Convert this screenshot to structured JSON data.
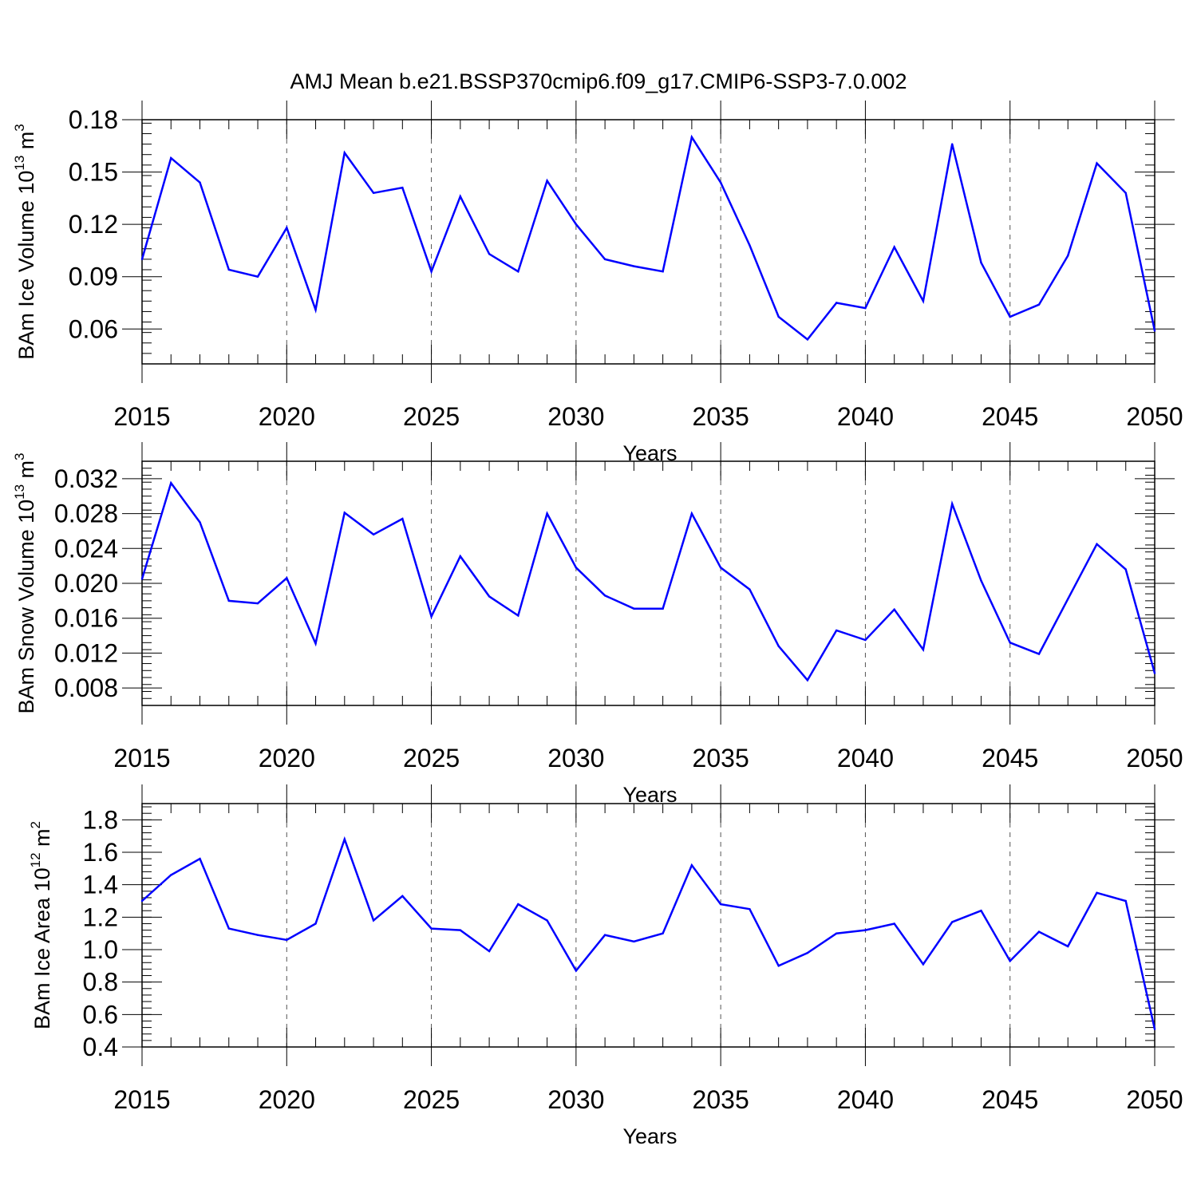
{
  "title": "AMJ Mean b.e21.BSSP370cmip6.f09_g17.CMIP6-SSP3-7.0.002",
  "line_color": "#0000ff",
  "chart_data": [
    {
      "type": "line",
      "ylabel_main": "BAm Ice Volume 10",
      "ylabel_exp": "13",
      "ylabel_unit": " m",
      "ylabel_unit_exp": "3",
      "xlabel": "Years",
      "xlim": [
        2015,
        2050
      ],
      "ylim": [
        0.04,
        0.18
      ],
      "yticks": [
        0.06,
        0.09,
        0.12,
        0.15,
        0.18
      ],
      "yticklabels": [
        "0.06",
        "0.09",
        "0.12",
        "0.15",
        "0.18"
      ],
      "xticks": [
        2015,
        2020,
        2025,
        2030,
        2035,
        2040,
        2045,
        2050
      ],
      "xticklabels": [
        "2015",
        "2020",
        "2025",
        "2030",
        "2035",
        "2040",
        "2045",
        "2050"
      ],
      "x": [
        2015,
        2016,
        2017,
        2018,
        2019,
        2020,
        2021,
        2022,
        2023,
        2024,
        2025,
        2026,
        2027,
        2028,
        2029,
        2030,
        2031,
        2032,
        2033,
        2034,
        2035,
        2036,
        2037,
        2038,
        2039,
        2040,
        2041,
        2042,
        2043,
        2044,
        2045,
        2046,
        2047,
        2048,
        2049,
        2050
      ],
      "values": [
        0.1,
        0.158,
        0.144,
        0.094,
        0.09,
        0.118,
        0.071,
        0.161,
        0.138,
        0.141,
        0.093,
        0.136,
        0.103,
        0.093,
        0.145,
        0.12,
        0.1,
        0.096,
        0.093,
        0.17,
        0.144,
        0.108,
        0.067,
        0.054,
        0.075,
        0.072,
        0.107,
        0.076,
        0.166,
        0.098,
        0.067,
        0.074,
        0.102,
        0.155,
        0.138,
        0.059
      ]
    },
    {
      "type": "line",
      "ylabel_main": "BAm Snow Volume 10",
      "ylabel_exp": "13",
      "ylabel_unit": " m",
      "ylabel_unit_exp": "3",
      "xlabel": "Years",
      "xlim": [
        2015,
        2050
      ],
      "ylim": [
        0.006,
        0.034
      ],
      "yticks": [
        0.008,
        0.012,
        0.016,
        0.02,
        0.024,
        0.028,
        0.032
      ],
      "yticklabels": [
        "0.008",
        "0.012",
        "0.016",
        "0.020",
        "0.024",
        "0.028",
        "0.032"
      ],
      "xticks": [
        2015,
        2020,
        2025,
        2030,
        2035,
        2040,
        2045,
        2050
      ],
      "xticklabels": [
        "2015",
        "2020",
        "2025",
        "2030",
        "2035",
        "2040",
        "2045",
        "2050"
      ],
      "x": [
        2015,
        2016,
        2017,
        2018,
        2019,
        2020,
        2021,
        2022,
        2023,
        2024,
        2025,
        2026,
        2027,
        2028,
        2029,
        2030,
        2031,
        2032,
        2033,
        2034,
        2035,
        2036,
        2037,
        2038,
        2039,
        2040,
        2041,
        2042,
        2043,
        2044,
        2045,
        2046,
        2047,
        2048,
        2049,
        2050
      ],
      "values": [
        0.0205,
        0.0315,
        0.027,
        0.018,
        0.0177,
        0.0206,
        0.0131,
        0.0281,
        0.0256,
        0.0274,
        0.0162,
        0.0231,
        0.0185,
        0.0163,
        0.028,
        0.0218,
        0.0186,
        0.0171,
        0.0171,
        0.028,
        0.0218,
        0.0193,
        0.0128,
        0.0089,
        0.0146,
        0.0135,
        0.017,
        0.0124,
        0.0291,
        0.0203,
        0.0132,
        0.0119,
        0.0182,
        0.0245,
        0.0216,
        0.0097
      ]
    },
    {
      "type": "line",
      "ylabel_main": "BAm Ice Area 10",
      "ylabel_exp": "12",
      "ylabel_unit": " m",
      "ylabel_unit_exp": "2",
      "xlabel": "Years",
      "xlim": [
        2015,
        2050
      ],
      "ylim": [
        0.4,
        1.9
      ],
      "yticks": [
        0.4,
        0.6,
        0.8,
        1.0,
        1.2,
        1.4,
        1.6,
        1.8
      ],
      "yticklabels": [
        "0.4",
        "0.6",
        "0.8",
        "1.0",
        "1.2",
        "1.4",
        "1.6",
        "1.8"
      ],
      "xticks": [
        2015,
        2020,
        2025,
        2030,
        2035,
        2040,
        2045,
        2050
      ],
      "xticklabels": [
        "2015",
        "2020",
        "2025",
        "2030",
        "2035",
        "2040",
        "2045",
        "2050"
      ],
      "x": [
        2015,
        2016,
        2017,
        2018,
        2019,
        2020,
        2021,
        2022,
        2023,
        2024,
        2025,
        2026,
        2027,
        2028,
        2029,
        2030,
        2031,
        2032,
        2033,
        2034,
        2035,
        2036,
        2037,
        2038,
        2039,
        2040,
        2041,
        2042,
        2043,
        2044,
        2045,
        2046,
        2047,
        2048,
        2049,
        2050
      ],
      "values": [
        1.3,
        1.46,
        1.56,
        1.13,
        1.09,
        1.06,
        1.16,
        1.68,
        1.18,
        1.33,
        1.13,
        1.12,
        0.99,
        1.28,
        1.18,
        0.87,
        1.09,
        1.05,
        1.1,
        1.52,
        1.28,
        1.25,
        0.9,
        0.98,
        1.1,
        1.12,
        1.16,
        0.91,
        1.17,
        1.24,
        0.93,
        1.11,
        1.02,
        1.35,
        1.3,
        0.51
      ]
    }
  ]
}
